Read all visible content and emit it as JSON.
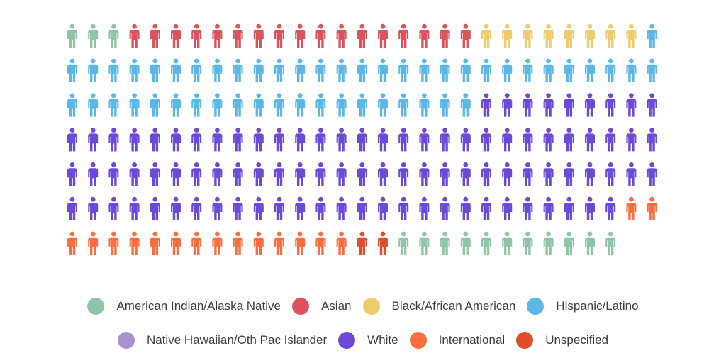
{
  "chart_data": {
    "type": "pictogram",
    "grid": {
      "rows": 7,
      "columns": 29
    },
    "series": [
      {
        "name": "American Indian/Alaska Native",
        "count": 14,
        "color": "#8fc5a6"
      },
      {
        "name": "Asian",
        "count": 17,
        "color": "#dc535d"
      },
      {
        "name": "Black/African American",
        "count": 8,
        "color": "#efcc6b"
      },
      {
        "name": "Hispanic/Latino",
        "count": 50,
        "color": "#5bb7e6"
      },
      {
        "name": "Native Hawaiian/Oth Pac Islander",
        "count": 0,
        "color": "#a991cb"
      },
      {
        "name": "White",
        "count": 94,
        "color": "#6b4ad8"
      },
      {
        "name": "International",
        "count": 16,
        "color": "#fb6d3c"
      },
      {
        "name": "Unspecified",
        "count": 2,
        "color": "#e04d2a"
      }
    ],
    "fill_order": [
      {
        "series": 0,
        "count": 3
      },
      {
        "series": 1,
        "count": 17
      },
      {
        "series": 2,
        "count": 8
      },
      {
        "series": 3,
        "count": 50
      },
      {
        "series": 5,
        "count": 94
      },
      {
        "series": 6,
        "count": 16
      },
      {
        "series": 7,
        "count": 2
      },
      {
        "series": 0,
        "count": 11
      }
    ],
    "legend": {
      "position": "bottom",
      "rows": [
        [
          0,
          1,
          2,
          3
        ],
        [
          4,
          5,
          6,
          7
        ]
      ]
    }
  }
}
